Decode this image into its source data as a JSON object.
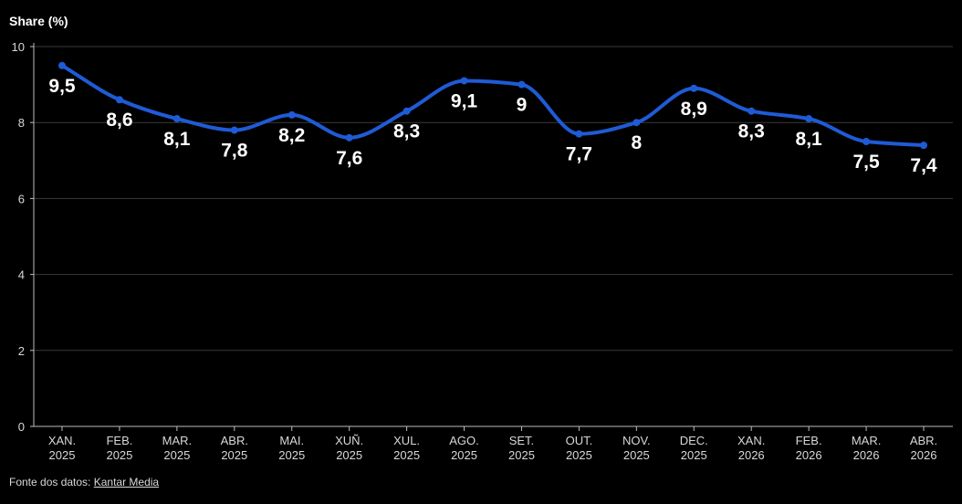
{
  "chart_data": {
    "type": "line",
    "ylabel": "Share (%)",
    "xlabel": "",
    "ylim": [
      0,
      10
    ],
    "yticks": [
      "0",
      "2",
      "4",
      "6",
      "8",
      "10"
    ],
    "grid": true,
    "categories": [
      [
        "XAN.",
        "2025"
      ],
      [
        "FEB.",
        "2025"
      ],
      [
        "MAR.",
        "2025"
      ],
      [
        "ABR.",
        "2025"
      ],
      [
        "MAI.",
        "2025"
      ],
      [
        "XUÑ.",
        "2025"
      ],
      [
        "XUL.",
        "2025"
      ],
      [
        "AGO.",
        "2025"
      ],
      [
        "SET.",
        "2025"
      ],
      [
        "OUT.",
        "2025"
      ],
      [
        "NOV.",
        "2025"
      ],
      [
        "DEC.",
        "2025"
      ],
      [
        "XAN.",
        "2026"
      ],
      [
        "FEB.",
        "2026"
      ],
      [
        "MAR.",
        "2026"
      ],
      [
        "ABR.",
        "2026"
      ]
    ],
    "series": [
      {
        "values": [
          9.5,
          8.6,
          8.1,
          7.8,
          8.2,
          7.6,
          8.3,
          9.1,
          9,
          7.7,
          8,
          8.9,
          8.3,
          8.1,
          7.5,
          7.4
        ],
        "labels": [
          "9,5",
          "8,6",
          "8,1",
          "7,8",
          "8,2",
          "7,6",
          "8,3",
          "9,1",
          "9",
          "7,7",
          "8",
          "8,9",
          "8,3",
          "8,1",
          "7,5",
          "7,4"
        ],
        "color": "#1f5bd6"
      }
    ]
  },
  "source": {
    "prefix": "Fonte dos datos:",
    "link_text": "Kantar Media"
  }
}
